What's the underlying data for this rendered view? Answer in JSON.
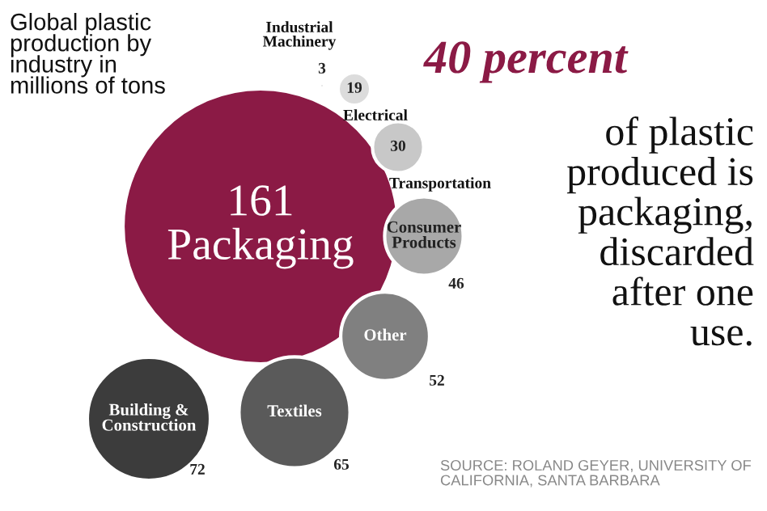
{
  "chart_data": {
    "type": "other",
    "title": "Global plastic\nproduction by\nindustry in\nmillions of tons",
    "categories": [
      "Packaging",
      "Industrial\nMachinery",
      "Electrical",
      "Transportation",
      "Consumer\nProducts",
      "Other",
      "Textiles",
      "Building &\nConstruction"
    ],
    "values": [
      161,
      3,
      19,
      30,
      46,
      52,
      65,
      72
    ],
    "colors": [
      "#8b1a45",
      "#e6e6e6",
      "#dcdcdc",
      "#c8c8c8",
      "#a8a8a8",
      "#808080",
      "#5a5a5a",
      "#3c3c3c"
    ],
    "data_labels": true,
    "annotations": [
      "40 percent",
      "of plastic\nproduced is\npackaging,\ndiscarded\nafter one\nuse.",
      "SOURCE: ROLAND GEYER, UNIVERSITY OF\nCALIFORNIA, SANTA BARBARA"
    ]
  }
}
